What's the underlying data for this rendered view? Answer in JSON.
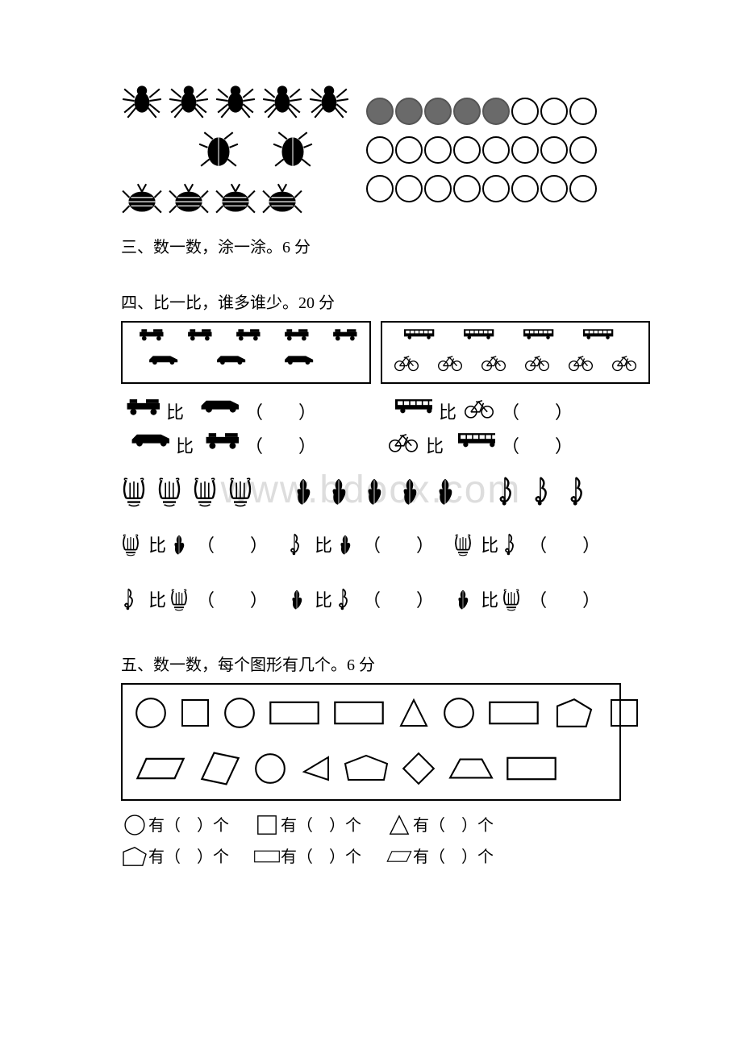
{
  "watermark": "www.bdocx.com",
  "section3": {
    "title": "三、数一数，涂一涂。6 分",
    "rows": [
      {
        "icon": "spider",
        "count": 5,
        "filled": 5,
        "total": 8
      },
      {
        "icon": "roach",
        "count": 2,
        "filled": 0,
        "total": 8
      },
      {
        "icon": "beetle",
        "count": 4,
        "filled": 0,
        "total": 8
      }
    ],
    "colors": {
      "filled": "#6a6a6a",
      "stroke": "#000000"
    }
  },
  "section4": {
    "title": "四、比一比，谁多谁少。20 分",
    "left_box": {
      "top": {
        "icon": "jeep",
        "count": 5
      },
      "bottom": {
        "icon": "sedan",
        "count": 3
      }
    },
    "right_box": {
      "top": {
        "icon": "bus",
        "count": 4
      },
      "bottom": {
        "icon": "bike",
        "count": 6
      }
    },
    "compare_word": "比",
    "blank": "（　　）",
    "vehicle_compares": [
      {
        "a": "jeep",
        "b": "sedan"
      },
      {
        "a": "sedan",
        "b": "jeep"
      },
      {
        "a": "bus",
        "b": "bike"
      },
      {
        "a": "bike",
        "b": "bus"
      }
    ],
    "music_groups": [
      {
        "icon": "lyre",
        "count": 4
      },
      {
        "icon": "clef-leaf",
        "count": 5
      },
      {
        "icon": "clef",
        "count": 3
      }
    ],
    "music_compares_row1": [
      {
        "a": "lyre",
        "b": "clef-leaf"
      },
      {
        "a": "clef",
        "b": "clef-leaf"
      },
      {
        "a": "lyre",
        "b": "clef"
      }
    ],
    "music_compares_row2": [
      {
        "a": "clef",
        "b": "lyre"
      },
      {
        "a": "clef-leaf",
        "b": "clef"
      },
      {
        "a": "clef-leaf",
        "b": "lyre"
      }
    ]
  },
  "section5": {
    "title": "五、数一数，每个图形有几个。6 分",
    "row1": [
      "circle",
      "square",
      "circle",
      "rect",
      "rect",
      "triangle",
      "circle",
      "rect",
      "pentagon",
      "square"
    ],
    "row2": [
      "parallelogram",
      "parallelogram-tall",
      "circle",
      "triangle-left",
      "pentagon-wide",
      "diamond",
      "trapezoid",
      "rect"
    ],
    "answers": [
      {
        "shape": "circle",
        "label": "有（　）个"
      },
      {
        "shape": "square",
        "label": "有（　）个"
      },
      {
        "shape": "triangle",
        "label": "有（　）个"
      },
      {
        "shape": "pentagon",
        "label": "有（　）个"
      },
      {
        "shape": "rect",
        "label": "有（　）个"
      },
      {
        "shape": "parallelogram",
        "label": "有（　）个"
      }
    ]
  }
}
